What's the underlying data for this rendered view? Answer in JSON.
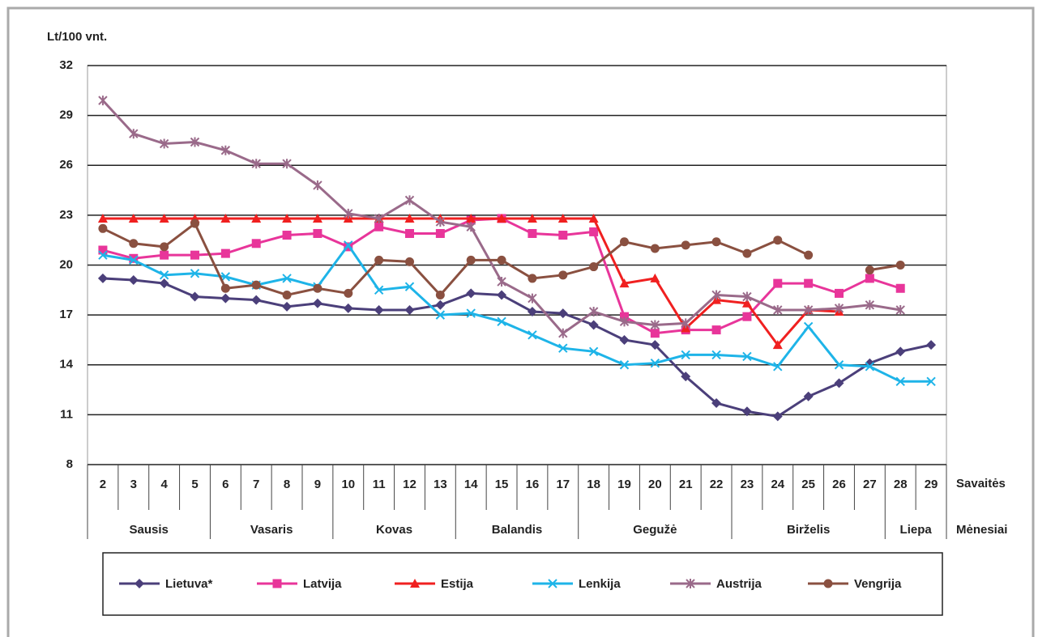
{
  "chart_data": {
    "type": "line",
    "y_label": "Lt/100 vnt.",
    "week_row_label": "Savaitės",
    "month_row_label": "Mėnesiai",
    "groups": [
      {
        "label": "Sausis",
        "categories": [
          "2",
          "3",
          "4",
          "5"
        ]
      },
      {
        "label": "Vasaris",
        "categories": [
          "6",
          "7",
          "8",
          "9"
        ]
      },
      {
        "label": "Kovas",
        "categories": [
          "10",
          "11",
          "12",
          "13"
        ]
      },
      {
        "label": "Balandis",
        "categories": [
          "14",
          "15",
          "16",
          "17"
        ]
      },
      {
        "label": "Gegužė",
        "categories": [
          "18",
          "19",
          "20",
          "21",
          "22"
        ]
      },
      {
        "label": "Birželis",
        "categories": [
          "23",
          "24",
          "25",
          "26",
          "27"
        ]
      },
      {
        "label": "Liepa",
        "categories": [
          "28",
          "29"
        ]
      }
    ],
    "ylim": [
      8,
      32
    ],
    "yticks": [
      8,
      11,
      14,
      17,
      20,
      23,
      26,
      29,
      32
    ],
    "grid": true,
    "series": [
      {
        "name": "Lietuva*",
        "color": "#4b3f7a",
        "marker": "diamond",
        "values": [
          19.2,
          19.1,
          18.9,
          18.1,
          18.0,
          17.9,
          17.5,
          17.7,
          17.4,
          17.3,
          17.3,
          17.6,
          18.3,
          18.2,
          17.2,
          17.1,
          16.4,
          15.5,
          15.2,
          13.3,
          11.7,
          11.2,
          10.9,
          12.1,
          12.9,
          14.1,
          14.8,
          15.2
        ]
      },
      {
        "name": "Latvija",
        "color": "#e8359a",
        "marker": "square",
        "values": [
          20.9,
          20.4,
          20.6,
          20.6,
          20.7,
          21.3,
          21.8,
          21.9,
          21.1,
          22.3,
          21.9,
          21.9,
          22.7,
          22.8,
          21.9,
          21.8,
          22.0,
          16.9,
          15.9,
          16.1,
          16.1,
          16.9,
          18.9,
          18.9,
          18.3,
          19.2,
          18.6,
          null
        ]
      },
      {
        "name": "Estija",
        "color": "#f02020",
        "marker": "triangle",
        "values": [
          22.8,
          22.8,
          22.8,
          22.8,
          22.8,
          22.8,
          22.8,
          22.8,
          22.8,
          22.8,
          22.8,
          22.8,
          22.8,
          22.8,
          22.8,
          22.8,
          22.8,
          18.9,
          19.2,
          16.2,
          17.9,
          17.7,
          15.2,
          17.3,
          17.2,
          null,
          null,
          null
        ]
      },
      {
        "name": "Lenkija",
        "color": "#1eb4e8",
        "marker": "x",
        "values": [
          20.6,
          20.3,
          19.4,
          19.5,
          19.3,
          18.8,
          19.2,
          18.7,
          21.2,
          18.5,
          18.7,
          17.0,
          17.1,
          16.6,
          15.8,
          15.0,
          14.8,
          14.0,
          14.1,
          14.6,
          14.6,
          14.5,
          13.9,
          16.3,
          14.0,
          13.9,
          13.0,
          13.0
        ]
      },
      {
        "name": "Austrija",
        "color": "#9a6a8a",
        "marker": "star",
        "values": [
          29.9,
          27.9,
          27.3,
          27.4,
          26.9,
          26.1,
          26.1,
          24.8,
          23.1,
          22.8,
          23.9,
          22.6,
          22.3,
          19.0,
          18.0,
          15.9,
          17.2,
          16.6,
          16.4,
          16.5,
          18.2,
          18.1,
          17.3,
          17.3,
          17.4,
          17.6,
          17.3,
          null
        ]
      },
      {
        "name": "Vengrija",
        "color": "#8a5040",
        "marker": "circle",
        "values": [
          22.2,
          21.3,
          21.1,
          22.5,
          18.6,
          18.8,
          18.2,
          18.6,
          18.3,
          20.3,
          20.2,
          18.2,
          20.3,
          20.3,
          19.2,
          19.4,
          19.9,
          21.4,
          21.0,
          21.2,
          21.4,
          20.7,
          21.5,
          20.6,
          null,
          19.7,
          20.0,
          null
        ]
      }
    ]
  }
}
